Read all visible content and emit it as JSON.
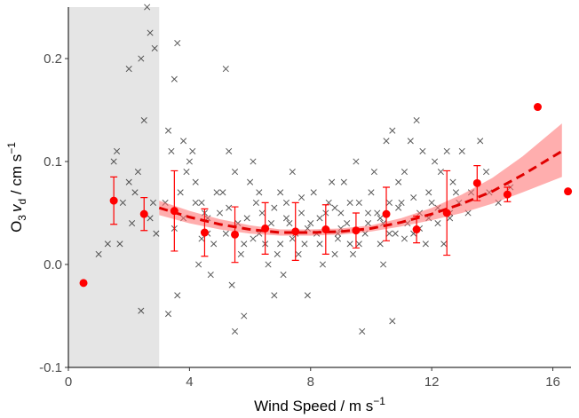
{
  "chart_data": {
    "type": "scatter",
    "xlabel": {
      "main": "Wind Speed / m s",
      "sup": "−1"
    },
    "ylabel": {
      "o": "O",
      "o_sub": "3",
      "v": "v",
      "v_sub": "d",
      "rest": " / cm s",
      "sup": "−1"
    },
    "xlim": [
      0,
      16.6
    ],
    "ylim": [
      -0.1,
      0.25
    ],
    "x_ticks": [
      0,
      4,
      8,
      12,
      16
    ],
    "x_tick_labels": [
      "0",
      "4",
      "8",
      "12",
      "16"
    ],
    "y_ticks": [
      -0.1,
      0.0,
      0.1,
      0.2
    ],
    "y_tick_labels": [
      "-0.1",
      "0.0",
      "0.1",
      "0.2"
    ],
    "shaded_region": {
      "x_from": 0,
      "x_to": 3.0,
      "color": "#e5e5e5"
    },
    "grid": false,
    "colors": {
      "raw": "#000000",
      "binned": "#ff0000",
      "fit_line": "#e00000",
      "fit_band": "#ff6b6b",
      "shade": "#e5e5e5"
    },
    "binned_means": [
      {
        "x": 0.5,
        "y": -0.018,
        "err": null
      },
      {
        "x": 1.5,
        "y": 0.062,
        "err": 0.023
      },
      {
        "x": 2.5,
        "y": 0.049,
        "err": 0.016
      },
      {
        "x": 3.5,
        "y": 0.052,
        "err": 0.039
      },
      {
        "x": 4.5,
        "y": 0.031,
        "err": 0.023
      },
      {
        "x": 5.5,
        "y": 0.029,
        "err": 0.027
      },
      {
        "x": 6.5,
        "y": 0.035,
        "err": 0.025
      },
      {
        "x": 7.5,
        "y": 0.032,
        "err": 0.028
      },
      {
        "x": 8.5,
        "y": 0.034,
        "err": 0.024
      },
      {
        "x": 9.5,
        "y": 0.033,
        "err": 0.017
      },
      {
        "x": 10.5,
        "y": 0.049,
        "err": 0.026
      },
      {
        "x": 11.5,
        "y": 0.034,
        "err": 0.013
      },
      {
        "x": 12.5,
        "y": 0.05,
        "err": 0.041
      },
      {
        "x": 13.5,
        "y": 0.079,
        "err": 0.017
      },
      {
        "x": 14.5,
        "y": 0.068,
        "err": 0.007
      },
      {
        "x": 15.5,
        "y": 0.153,
        "err": null
      },
      {
        "x": 16.5,
        "y": 0.071,
        "err": null
      }
    ],
    "fit_curve": {
      "x": [
        3.0,
        4.0,
        5.0,
        6.0,
        7.0,
        8.0,
        9.0,
        10.0,
        11.0,
        12.0,
        13.0,
        14.0,
        15.0,
        16.3
      ],
      "y": [
        0.055,
        0.046,
        0.039,
        0.034,
        0.031,
        0.031,
        0.032,
        0.035,
        0.041,
        0.049,
        0.059,
        0.071,
        0.087,
        0.11
      ],
      "lower": [
        0.048,
        0.04,
        0.034,
        0.03,
        0.028,
        0.028,
        0.029,
        0.032,
        0.037,
        0.043,
        0.05,
        0.059,
        0.07,
        0.085
      ],
      "upper": [
        0.062,
        0.052,
        0.044,
        0.038,
        0.034,
        0.034,
        0.035,
        0.038,
        0.045,
        0.055,
        0.068,
        0.084,
        0.105,
        0.137
      ]
    },
    "scatter_points": [
      [
        1.0,
        0.01
      ],
      [
        1.3,
        0.02
      ],
      [
        1.5,
        0.1
      ],
      [
        1.6,
        0.11
      ],
      [
        1.8,
        0.06
      ],
      [
        2.0,
        0.08
      ],
      [
        2.1,
        0.04
      ],
      [
        2.2,
        0.07
      ],
      [
        2.3,
        0.09
      ],
      [
        2.5,
        0.14
      ],
      [
        2.7,
        0.045
      ],
      [
        2.8,
        0.06
      ],
      [
        2.9,
        0.03
      ],
      [
        2.0,
        0.19
      ],
      [
        2.4,
        0.2
      ],
      [
        2.6,
        0.25
      ],
      [
        2.7,
        0.225
      ],
      [
        2.85,
        0.21
      ],
      [
        2.4,
        -0.045
      ],
      [
        1.7,
        0.02
      ],
      [
        3.3,
        0.13
      ],
      [
        3.5,
        0.18
      ],
      [
        3.6,
        0.215
      ],
      [
        3.8,
        0.12
      ],
      [
        3.4,
        0.11
      ],
      [
        3.9,
        0.09
      ],
      [
        3.7,
        0.07
      ],
      [
        3.2,
        0.06
      ],
      [
        3.3,
        -0.048
      ],
      [
        3.6,
        -0.03
      ],
      [
        4.0,
        0.1
      ],
      [
        4.2,
        0.08
      ],
      [
        4.4,
        0.06
      ],
      [
        4.5,
        0.05
      ],
      [
        4.6,
        0.03
      ],
      [
        4.8,
        0.02
      ],
      [
        4.3,
        0.0
      ],
      [
        4.7,
        -0.01
      ],
      [
        4.1,
        0.11
      ],
      [
        4.9,
        0.07
      ],
      [
        5.0,
        0.05
      ],
      [
        5.2,
        0.19
      ],
      [
        5.3,
        0.11
      ],
      [
        5.5,
        0.09
      ],
      [
        5.6,
        0.04
      ],
      [
        5.7,
        0.01
      ],
      [
        5.4,
        -0.02
      ],
      [
        5.8,
        -0.05
      ],
      [
        5.5,
        -0.065
      ],
      [
        5.1,
        0.07
      ],
      [
        6.0,
        0.08
      ],
      [
        6.2,
        0.06
      ],
      [
        6.3,
        0.03
      ],
      [
        6.5,
        0.02
      ],
      [
        6.6,
        0.0
      ],
      [
        6.8,
        -0.03
      ],
      [
        6.1,
        0.1
      ],
      [
        6.4,
        0.05
      ],
      [
        6.7,
        0.04
      ],
      [
        6.9,
        0.01
      ],
      [
        7.0,
        0.07
      ],
      [
        7.2,
        0.06
      ],
      [
        7.3,
        0.04
      ],
      [
        7.5,
        0.03
      ],
      [
        7.6,
        0.01
      ],
      [
        7.8,
        0.02
      ],
      [
        7.1,
        -0.01
      ],
      [
        7.4,
        0.09
      ],
      [
        7.7,
        0.05
      ],
      [
        7.9,
        -0.03
      ],
      [
        8.0,
        0.04
      ],
      [
        8.2,
        0.03
      ],
      [
        8.3,
        0.02
      ],
      [
        8.5,
        0.05
      ],
      [
        8.6,
        0.06
      ],
      [
        8.8,
        0.01
      ],
      [
        8.1,
        0.07
      ],
      [
        8.4,
        0.0
      ],
      [
        8.7,
        0.08
      ],
      [
        8.9,
        0.03
      ],
      [
        9.0,
        0.05
      ],
      [
        9.2,
        0.04
      ],
      [
        9.3,
        0.02
      ],
      [
        9.5,
        0.1
      ],
      [
        9.6,
        0.06
      ],
      [
        9.8,
        0.03
      ],
      [
        9.1,
        0.08
      ],
      [
        9.4,
        0.01
      ],
      [
        9.7,
        -0.065
      ],
      [
        9.9,
        0.04
      ],
      [
        10.0,
        0.07
      ],
      [
        10.2,
        0.05
      ],
      [
        10.3,
        0.02
      ],
      [
        10.5,
        0.12
      ],
      [
        10.6,
        0.06
      ],
      [
        10.8,
        0.03
      ],
      [
        10.1,
        0.09
      ],
      [
        10.4,
        0.0
      ],
      [
        10.7,
        0.13
      ],
      [
        10.9,
        0.08
      ],
      [
        11.0,
        0.06
      ],
      [
        11.2,
        0.04
      ],
      [
        11.3,
        0.12
      ],
      [
        11.5,
        0.14
      ],
      [
        11.6,
        0.05
      ],
      [
        11.8,
        0.02
      ],
      [
        11.1,
        0.09
      ],
      [
        11.4,
        0.03
      ],
      [
        11.7,
        0.11
      ],
      [
        11.9,
        0.07
      ],
      [
        12.0,
        0.06
      ],
      [
        12.2,
        0.04
      ],
      [
        12.3,
        0.09
      ],
      [
        12.5,
        0.11
      ],
      [
        12.6,
        0.05
      ],
      [
        12.8,
        0.07
      ],
      [
        12.1,
        0.1
      ],
      [
        12.4,
        0.02
      ],
      [
        12.7,
        0.08
      ],
      [
        12.9,
        0.06
      ],
      [
        13.0,
        0.11
      ],
      [
        13.2,
        0.05
      ],
      [
        13.3,
        0.07
      ],
      [
        13.6,
        0.12
      ],
      [
        13.8,
        0.09
      ],
      [
        13.9,
        0.07
      ],
      [
        14.2,
        0.06
      ],
      [
        14.6,
        0.075
      ],
      [
        10.7,
        -0.055
      ],
      [
        4.2,
        0.06
      ],
      [
        4.6,
        0.045
      ],
      [
        5.3,
        0.055
      ],
      [
        5.9,
        0.045
      ],
      [
        6.3,
        0.07
      ],
      [
        6.8,
        0.055
      ],
      [
        7.2,
        0.045
      ],
      [
        7.7,
        0.065
      ],
      [
        8.3,
        0.045
      ],
      [
        8.8,
        0.055
      ],
      [
        9.3,
        0.06
      ],
      [
        9.9,
        0.05
      ],
      [
        10.4,
        0.04
      ],
      [
        10.9,
        0.055
      ],
      [
        11.4,
        0.065
      ],
      [
        11.9,
        0.045
      ],
      [
        3.5,
        0.035
      ],
      [
        4.4,
        0.025
      ],
      [
        5.2,
        0.03
      ],
      [
        6.1,
        0.025
      ],
      [
        7.0,
        0.02
      ],
      [
        7.9,
        0.035
      ],
      [
        8.9,
        0.025
      ],
      [
        9.6,
        0.02
      ],
      [
        10.6,
        0.03
      ],
      [
        11.6,
        0.035
      ],
      [
        12.6,
        0.045
      ],
      [
        3.8,
        0.045
      ],
      [
        5.8,
        0.02
      ],
      [
        7.4,
        0.025
      ],
      [
        9.0,
        0.035
      ],
      [
        10.3,
        0.045
      ],
      [
        11.1,
        0.025
      ],
      [
        12.2,
        0.055
      ]
    ]
  }
}
